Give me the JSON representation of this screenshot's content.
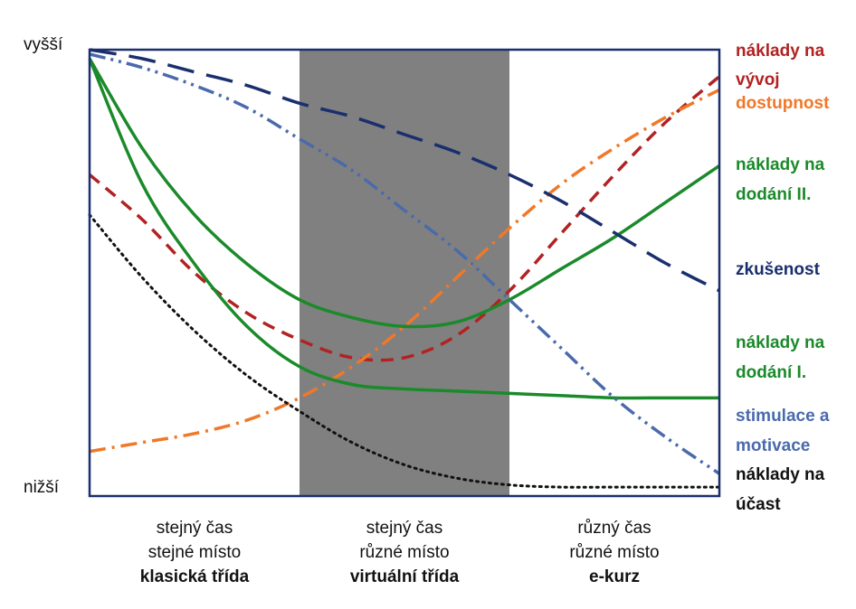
{
  "chart_data": {
    "type": "line",
    "x_domain": [
      0,
      3
    ],
    "y_domain": [
      0,
      100
    ],
    "y_axis": {
      "top_label": "vyšší",
      "bottom_label": "nižší"
    },
    "shaded_region": {
      "x": [
        1,
        2
      ],
      "color": "#808080"
    },
    "x_groups": [
      {
        "lines": [
          "stejný čas",
          "stejné místo",
          "klasická třída"
        ],
        "bold_line": 2
      },
      {
        "lines": [
          "stejný čas",
          "různé místo",
          "virtuální třída"
        ],
        "bold_line": 2
      },
      {
        "lines": [
          "různý čas",
          "různé místo",
          "e-kurz"
        ],
        "bold_line": 2
      }
    ],
    "series": [
      {
        "name_lines": [
          "náklady na",
          "vývoj"
        ],
        "color": "#b22222",
        "dash": "dashed",
        "x": [
          0,
          0.25,
          0.5,
          0.75,
          1.0,
          1.25,
          1.5,
          1.75,
          2.0,
          2.25,
          2.5,
          2.75,
          3.0
        ],
        "y": [
          72,
          62,
          50,
          41,
          35,
          31,
          31,
          36,
          46,
          59,
          72,
          84,
          94
        ]
      },
      {
        "name_lines": [
          "dostupnost"
        ],
        "color": "#f07828",
        "dash": "dashdot",
        "x": [
          0,
          0.25,
          0.5,
          0.75,
          1.0,
          1.25,
          1.5,
          1.75,
          2.0,
          2.25,
          2.5,
          2.75,
          3.0
        ],
        "y": [
          10,
          12,
          14,
          17,
          22,
          29,
          38,
          49,
          60,
          70,
          78,
          85,
          91
        ]
      },
      {
        "name_lines": [
          "náklady na",
          "dodání II."
        ],
        "color": "#1a8a2a",
        "dash": "solid",
        "x": [
          0,
          0.25,
          0.5,
          0.75,
          1.0,
          1.25,
          1.5,
          1.75,
          2.0,
          2.25,
          2.5,
          2.75,
          3.0
        ],
        "y": [
          98,
          78,
          63,
          52,
          44,
          40,
          38,
          39,
          44,
          51,
          58,
          66,
          74
        ]
      },
      {
        "name_lines": [
          "zkušenost"
        ],
        "color": "#1a2f6e",
        "dash": "longdash",
        "x": [
          0,
          0.25,
          0.5,
          0.75,
          1.0,
          1.25,
          1.5,
          1.75,
          2.0,
          2.25,
          2.5,
          2.75,
          3.0
        ],
        "y": [
          100,
          98,
          95,
          92,
          88,
          85,
          81,
          77,
          72,
          66,
          59,
          52,
          46
        ]
      },
      {
        "name_lines": [
          "náklady na",
          "dodání I."
        ],
        "color": "#1a8a2a",
        "dash": "solid",
        "x": [
          0,
          0.25,
          0.5,
          0.75,
          1.0,
          1.25,
          1.5,
          1.75,
          2.0,
          2.25,
          2.5,
          2.75,
          3.0
        ],
        "y": [
          98,
          70,
          52,
          38,
          29,
          25,
          24,
          23.5,
          23,
          22.5,
          22,
          22,
          22
        ]
      },
      {
        "name_lines": [
          "stimulace a",
          "motivace"
        ],
        "color": "#4a6aac",
        "dash": "dashdotdot",
        "x": [
          0,
          0.25,
          0.5,
          0.75,
          1.0,
          1.25,
          1.5,
          1.75,
          2.0,
          2.25,
          2.5,
          2.75,
          3.0
        ],
        "y": [
          99,
          96,
          92,
          87,
          80,
          73,
          64,
          55,
          44,
          33,
          22,
          13,
          5
        ]
      },
      {
        "name_lines": [
          "náklady na",
          "účast"
        ],
        "color": "#111111",
        "dash": "dotted",
        "x": [
          0,
          0.25,
          0.5,
          0.75,
          1.0,
          1.25,
          1.5,
          1.75,
          2.0,
          2.25,
          2.5,
          2.75,
          3.0
        ],
        "y": [
          63,
          49,
          37,
          27,
          19,
          12,
          7,
          4,
          2.5,
          2,
          2,
          2,
          2
        ]
      }
    ]
  }
}
